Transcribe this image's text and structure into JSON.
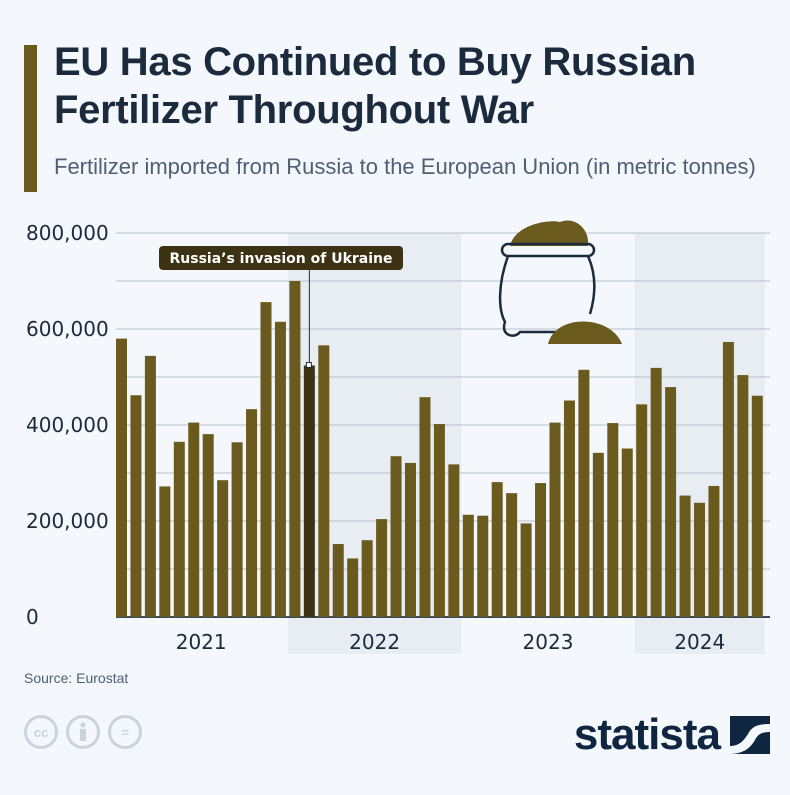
{
  "header": {
    "title": "EU Has Continued to Buy Russian Fertilizer Throughout War",
    "subtitle": "Fertilizer imported from Russia to the European Union (in metric tonnes)"
  },
  "colors": {
    "bar": "#6b5a1e",
    "highlight": "#3d3213",
    "band": "#e8edf4",
    "accent": "#6b5a1e"
  },
  "chart_data": {
    "type": "bar",
    "title": "EU Has Continued to Buy Russian Fertilizer Throughout War",
    "ylabel": "metric tonnes",
    "ylim": [
      0,
      800000
    ],
    "yticks": [
      0,
      200000,
      400000,
      600000,
      800000
    ],
    "ytick_labels": [
      "0",
      "200,000",
      "400,000",
      "600,000",
      "800,000"
    ],
    "year_labels": [
      "2021",
      "2022",
      "2023",
      "2024"
    ],
    "year_months": [
      12,
      12,
      12,
      9
    ],
    "shaded_years": [
      "2022",
      "2024"
    ],
    "grid": true,
    "annotation": {
      "label": "Russia’s invasion of Ukraine",
      "bar_index": 13
    },
    "values": [
      580000,
      462000,
      544000,
      272000,
      365000,
      405000,
      381000,
      285000,
      364000,
      433000,
      656000,
      615000,
      700000,
      524000,
      566000,
      152000,
      122000,
      160000,
      204000,
      335000,
      321000,
      458000,
      402000,
      318000,
      213000,
      211000,
      281000,
      258000,
      195000,
      279000,
      405000,
      451000,
      515000,
      342000,
      404000,
      351000,
      443000,
      519000,
      479000,
      253000,
      238000,
      273000,
      573000,
      504000,
      461000
    ]
  },
  "footer": {
    "source": "Source: Eurostat",
    "license_icons": [
      "cc-icon",
      "attribution-icon",
      "no-derivatives-icon"
    ],
    "cc_label": "cc",
    "nd_label": "=",
    "logo": "statista"
  }
}
